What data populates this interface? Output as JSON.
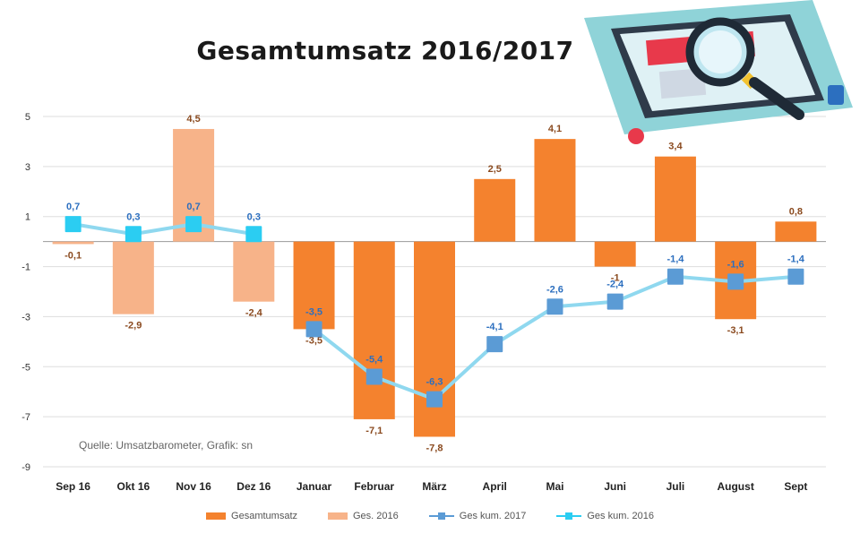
{
  "title": "Gesamtumsatz 2016/2017",
  "source_note": "Quelle: Umsatzbarometer, Grafik: sn",
  "colors": {
    "gesamtumsatz": "#f4822e",
    "ges_2016": "#f7b389",
    "kum_2017": "#5b9bd5",
    "kum_2016": "#2bcdf2",
    "grid": "#dddddd",
    "label_bar": "#8a4a1f",
    "label_line": "#2c6fbf"
  },
  "chart_data": {
    "type": "bar",
    "title": "Gesamtumsatz 2016/2017",
    "categories": [
      "Sep 16",
      "Okt 16",
      "Nov 16",
      "Dez 16",
      "Januar",
      "Februar",
      "März",
      "April",
      "Mai",
      "Juni",
      "Juli",
      "August",
      "Sept"
    ],
    "ylim": [
      -9,
      5
    ],
    "y_ticks": [
      "5",
      "3",
      "1",
      "-1",
      "-3",
      "-5",
      "-7",
      "-9"
    ],
    "grid": true,
    "legend_position": "bottom",
    "series": [
      {
        "name": "Gesamtumsatz",
        "kind": "bar",
        "values": [
          null,
          null,
          null,
          null,
          -3.5,
          -7.1,
          -7.8,
          2.5,
          4.1,
          -1,
          3.4,
          -3.1,
          0.8
        ],
        "labels": [
          null,
          null,
          null,
          null,
          "-3,5",
          "-7,1",
          "-7,8",
          "2,5",
          "4,1",
          "-1",
          "3,4",
          "-3,1",
          "0,8"
        ]
      },
      {
        "name": "Ges. 2016",
        "kind": "bar",
        "values": [
          -0.1,
          -2.9,
          4.5,
          -2.4,
          null,
          null,
          null,
          null,
          null,
          null,
          null,
          null,
          null
        ],
        "labels": [
          "-0,1",
          "-2,9",
          "4,5",
          "-2,4",
          null,
          null,
          null,
          null,
          null,
          null,
          null,
          null,
          null
        ]
      },
      {
        "name": "Ges kum. 2017",
        "kind": "line",
        "values": [
          null,
          null,
          null,
          null,
          -3.5,
          -5.4,
          -6.3,
          -4.1,
          -2.6,
          -2.4,
          -1.4,
          -1.6,
          -1.4
        ],
        "labels": [
          null,
          null,
          null,
          null,
          "-3,5",
          "-5,4",
          "-6,3",
          "-4,1",
          "-2,6",
          "-2,4",
          "-1,4",
          "-1,6",
          "-1,4"
        ]
      },
      {
        "name": "Ges kum. 2016",
        "kind": "line",
        "values": [
          0.7,
          0.3,
          0.7,
          0.3,
          null,
          null,
          null,
          null,
          null,
          null,
          null,
          null,
          null
        ],
        "labels": [
          "0,7",
          "0,3",
          "0,7",
          "0,3",
          null,
          null,
          null,
          null,
          null,
          null,
          null,
          null,
          null
        ]
      }
    ]
  }
}
